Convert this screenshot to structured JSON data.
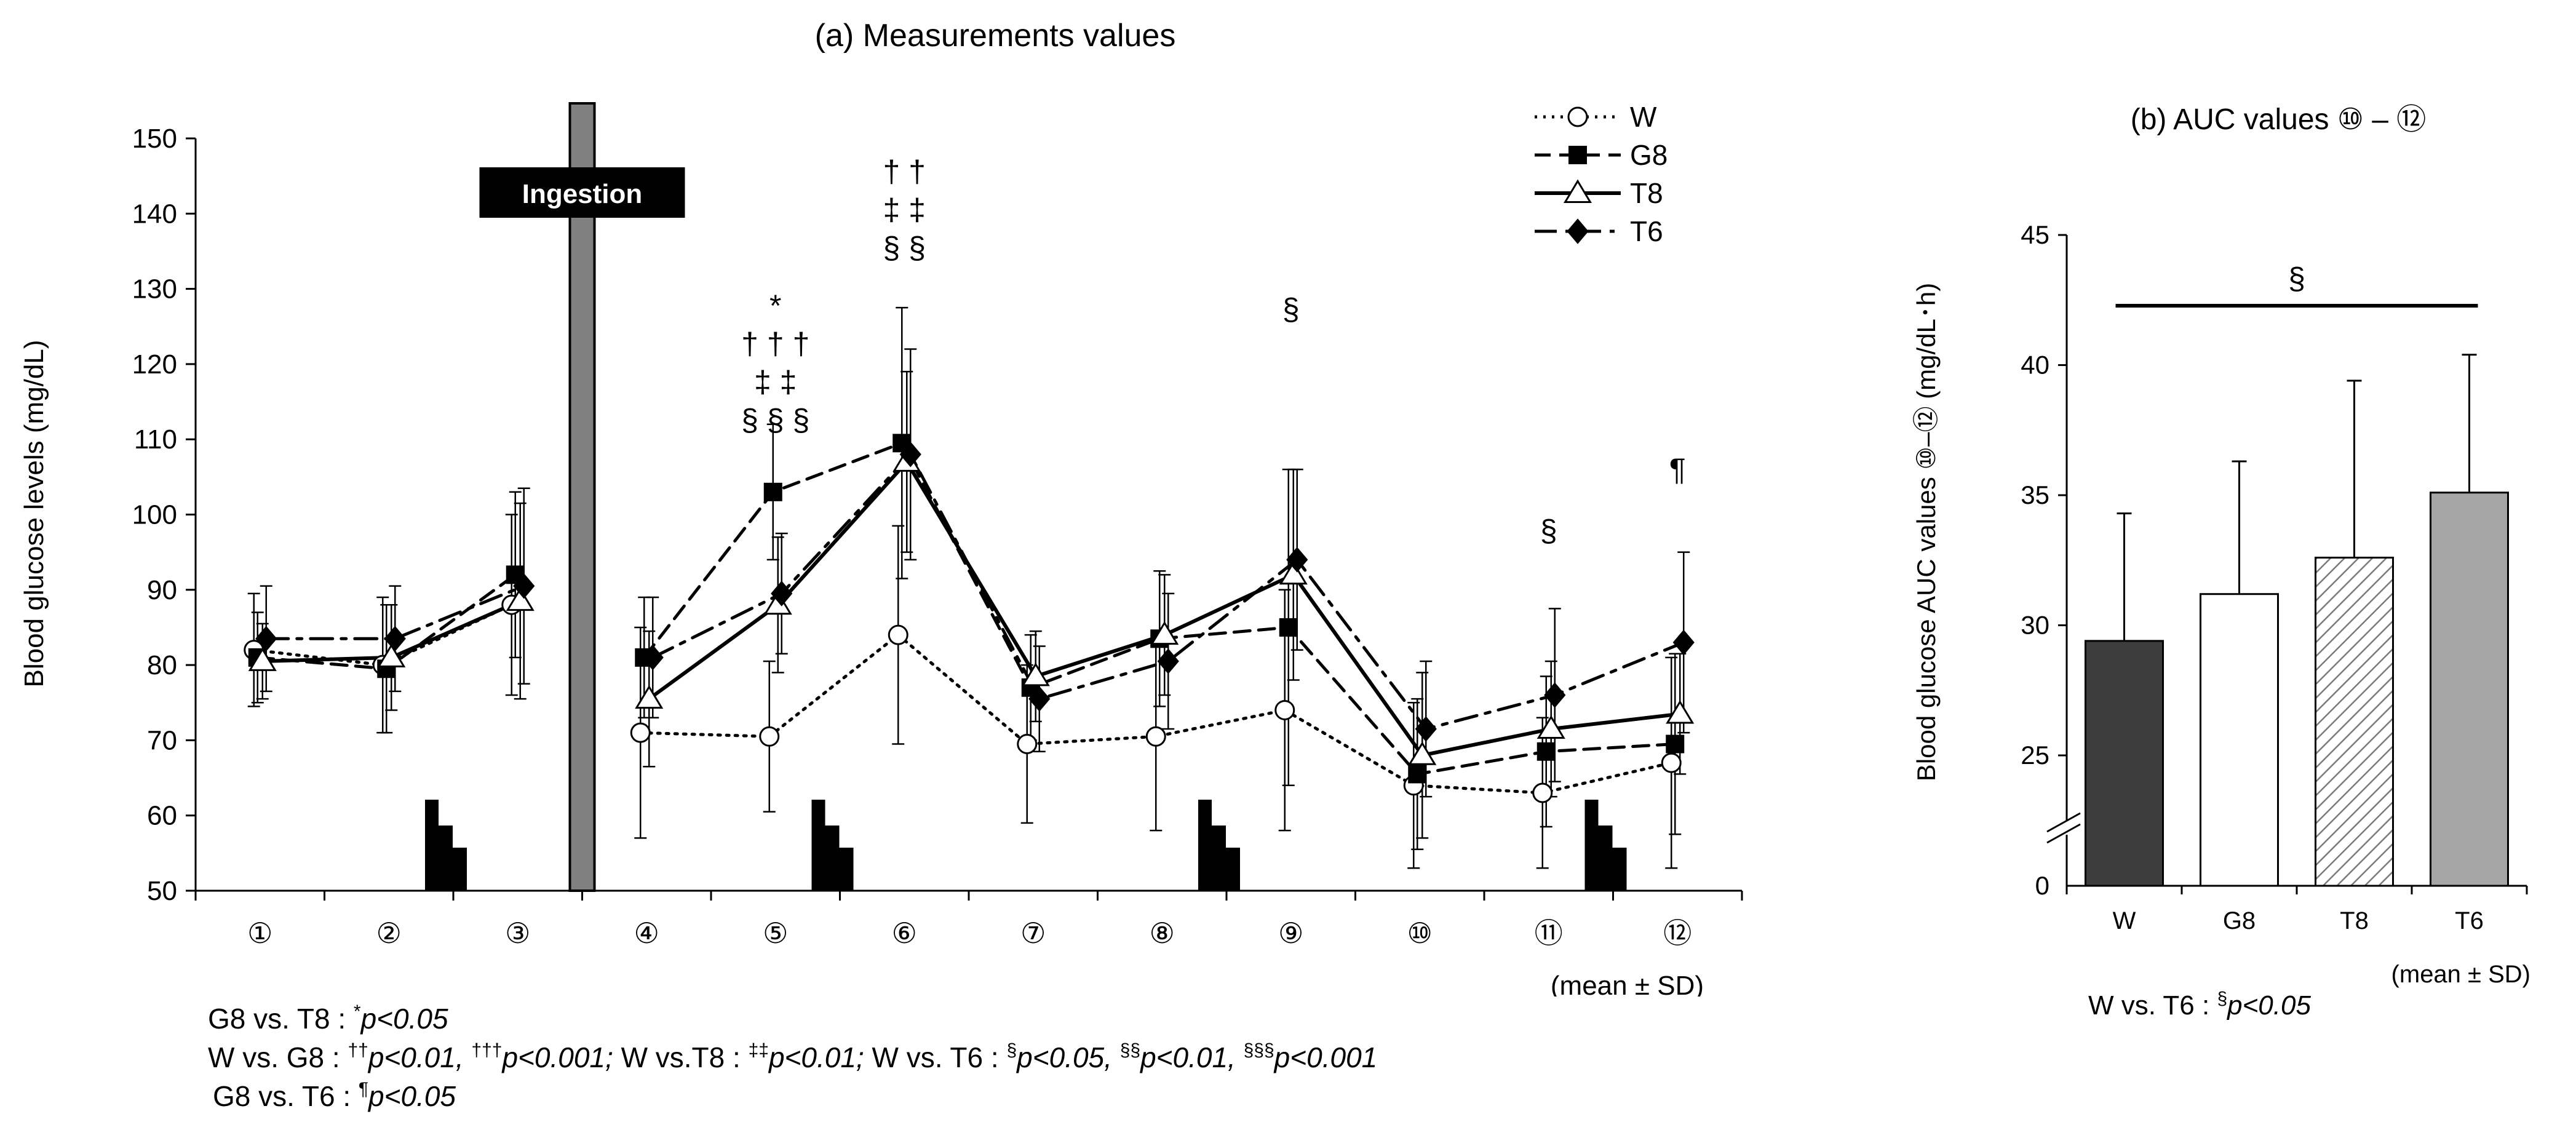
{
  "chart_data": [
    {
      "type": "line",
      "title": "(a) Measurements values",
      "ylabel": "Blood glucose levels (mg/dL)",
      "xlabel": "",
      "ylim": [
        50,
        150
      ],
      "yticks": [
        50,
        60,
        70,
        80,
        90,
        100,
        110,
        120,
        130,
        140,
        150
      ],
      "categories": [
        "①",
        "②",
        "③",
        "④",
        "⑤",
        "⑥",
        "⑦",
        "⑧",
        "⑨",
        "⑩",
        "⑪",
        "⑫"
      ],
      "ingestion_label": "Ingestion",
      "ingestion_after_category": 3,
      "series": [
        {
          "name": "W",
          "marker": "circle",
          "dash": "dotted",
          "values": [
            82,
            80,
            88,
            71,
            70.5,
            84,
            69.5,
            70.5,
            74,
            64,
            63,
            67
          ],
          "sd": [
            7.5,
            9,
            12,
            14,
            10,
            14.5,
            10.5,
            12.5,
            16,
            11,
            10,
            14
          ]
        },
        {
          "name": "G8",
          "marker": "square",
          "dash": "dashed",
          "values": [
            81,
            79.5,
            92,
            81,
            103,
            109.5,
            77,
            83.5,
            85,
            65.5,
            68.5,
            69.5
          ],
          "sd": [
            6,
            8.5,
            11,
            8,
            9,
            18,
            7,
            9,
            21,
            10,
            10,
            12
          ]
        },
        {
          "name": "T8",
          "marker": "triangle",
          "dash": "solid",
          "values": [
            80.5,
            81,
            88.5,
            75.5,
            88,
            107,
            78.5,
            84,
            92,
            68,
            71.5,
            73.5
          ],
          "sd": [
            5,
            7,
            13,
            9,
            9,
            12,
            6,
            8,
            14,
            11,
            9,
            8
          ]
        },
        {
          "name": "T6",
          "marker": "diamond",
          "dash": "dashdot",
          "values": [
            83.5,
            83.5,
            90.5,
            81,
            89.5,
            108,
            75.5,
            80.5,
            94,
            71.5,
            76,
            83
          ],
          "sd": [
            7,
            7,
            13,
            8,
            8,
            14,
            7,
            9,
            12,
            9,
            11.5,
            12
          ]
        }
      ],
      "significance": [
        {
          "category": "⑤",
          "marks": [
            "*",
            "† † †",
            "‡ ‡",
            "§ § §"
          ]
        },
        {
          "category": "⑥",
          "marks": [
            "† †",
            "‡ ‡",
            "§ §"
          ]
        },
        {
          "category": "⑨",
          "marks": [
            "§"
          ]
        },
        {
          "category": "⑪",
          "marks": [
            "§"
          ]
        },
        {
          "category": "⑫",
          "marks": [
            "¶"
          ]
        }
      ],
      "note": "(mean ± SD)"
    },
    {
      "type": "bar",
      "title": "(b) AUC values ⑩ – ⑫",
      "ylabel": "Blood glucose AUC values ⑩–⑫ (mg/dL･h)",
      "ylim": [
        25,
        45
      ],
      "yticks": [
        25,
        30,
        35,
        40,
        45
      ],
      "y_break_label": "0",
      "categories": [
        "W",
        "G8",
        "T8",
        "T6"
      ],
      "values": [
        29.4,
        31.2,
        32.6,
        35.1
      ],
      "sd": [
        4.9,
        5.1,
        6.8,
        5.3
      ],
      "fills": [
        "dark",
        "white",
        "hatched",
        "gray"
      ],
      "significance": {
        "from": "W",
        "to": "T6",
        "mark": "§"
      },
      "note": "(mean ± SD)"
    }
  ],
  "footnotes": {
    "line1": {
      "label": "G8 vs. T8 : ",
      "sym": "*",
      "p": "p<0.05"
    },
    "line2": {
      "a_label": "W vs. G8 : ",
      "a_sym": "††",
      "a_p": "p<0.01, ",
      "b_sym": "†††",
      "b_p": "p<0.001; ",
      "c_label": "W vs.T8 : ",
      "c_sym": "‡‡",
      "c_p": "p<0.01; ",
      "d_label": "W vs. T6 : ",
      "d_sym": "§",
      "d_p": "p<0.05, ",
      "e_sym": "§§",
      "e_p": "p<0.01, ",
      "f_sym": "§§§",
      "f_p": "p<0.001"
    },
    "line3": {
      "label": "G8 vs. T6 : ",
      "sym": "¶",
      "p": "p<0.05"
    },
    "right": {
      "label": "W vs. T6 : ",
      "sym": "§",
      "p": "p<0.05"
    }
  },
  "colors": {
    "w_bar": "#3d3d3d",
    "t6_bar": "#a6a6a6",
    "ingestion_bar": "#808080",
    "ink": "#000000"
  }
}
